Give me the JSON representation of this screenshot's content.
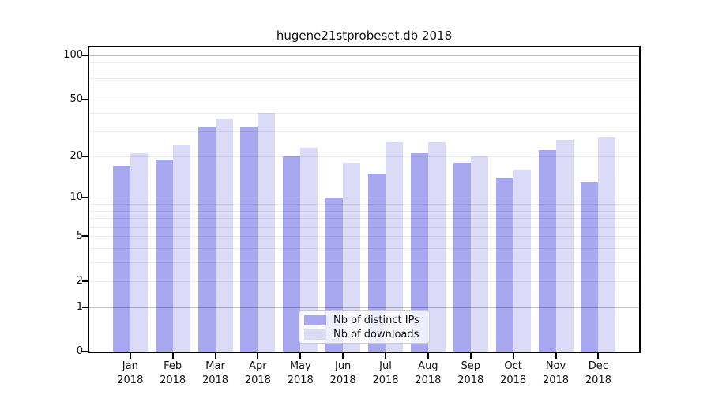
{
  "chart_data": {
    "type": "bar",
    "title": "hugene21stprobeset.db 2018",
    "xlabel": "",
    "ylabel": "",
    "yscale": "log1p",
    "grid": "on",
    "legend_position": "lower center",
    "categories": [
      "Jan",
      "Feb",
      "Mar",
      "Apr",
      "May",
      "Jun",
      "Jul",
      "Aug",
      "Sep",
      "Oct",
      "Nov",
      "Dec"
    ],
    "category_year": "2018",
    "series": [
      {
        "name": "Nb of distinct IPs",
        "color": "#a8a8f0",
        "values": [
          17,
          19,
          32,
          32,
          20,
          10,
          15,
          21,
          18,
          14,
          22,
          13
        ]
      },
      {
        "name": "Nb of downloads",
        "color": "#dbdbf8",
        "values": [
          21,
          24,
          37,
          40,
          23,
          18,
          25,
          25,
          20,
          16,
          26,
          27
        ]
      }
    ],
    "yticks": [
      0,
      1,
      2,
      5,
      10,
      20,
      50,
      100
    ],
    "major_gridlines": [
      1,
      10,
      100
    ],
    "minor_gridlines": [
      2,
      3,
      4,
      5,
      6,
      7,
      8,
      9,
      20,
      30,
      40,
      50,
      60,
      70,
      80,
      90
    ],
    "ylim": [
      0,
      113
    ]
  },
  "colors": {
    "axis": "#000000",
    "major_grid": "#c0c0c0",
    "minor_grid": "#ededed",
    "text": "#111111",
    "legend_border": "#cccccc"
  }
}
